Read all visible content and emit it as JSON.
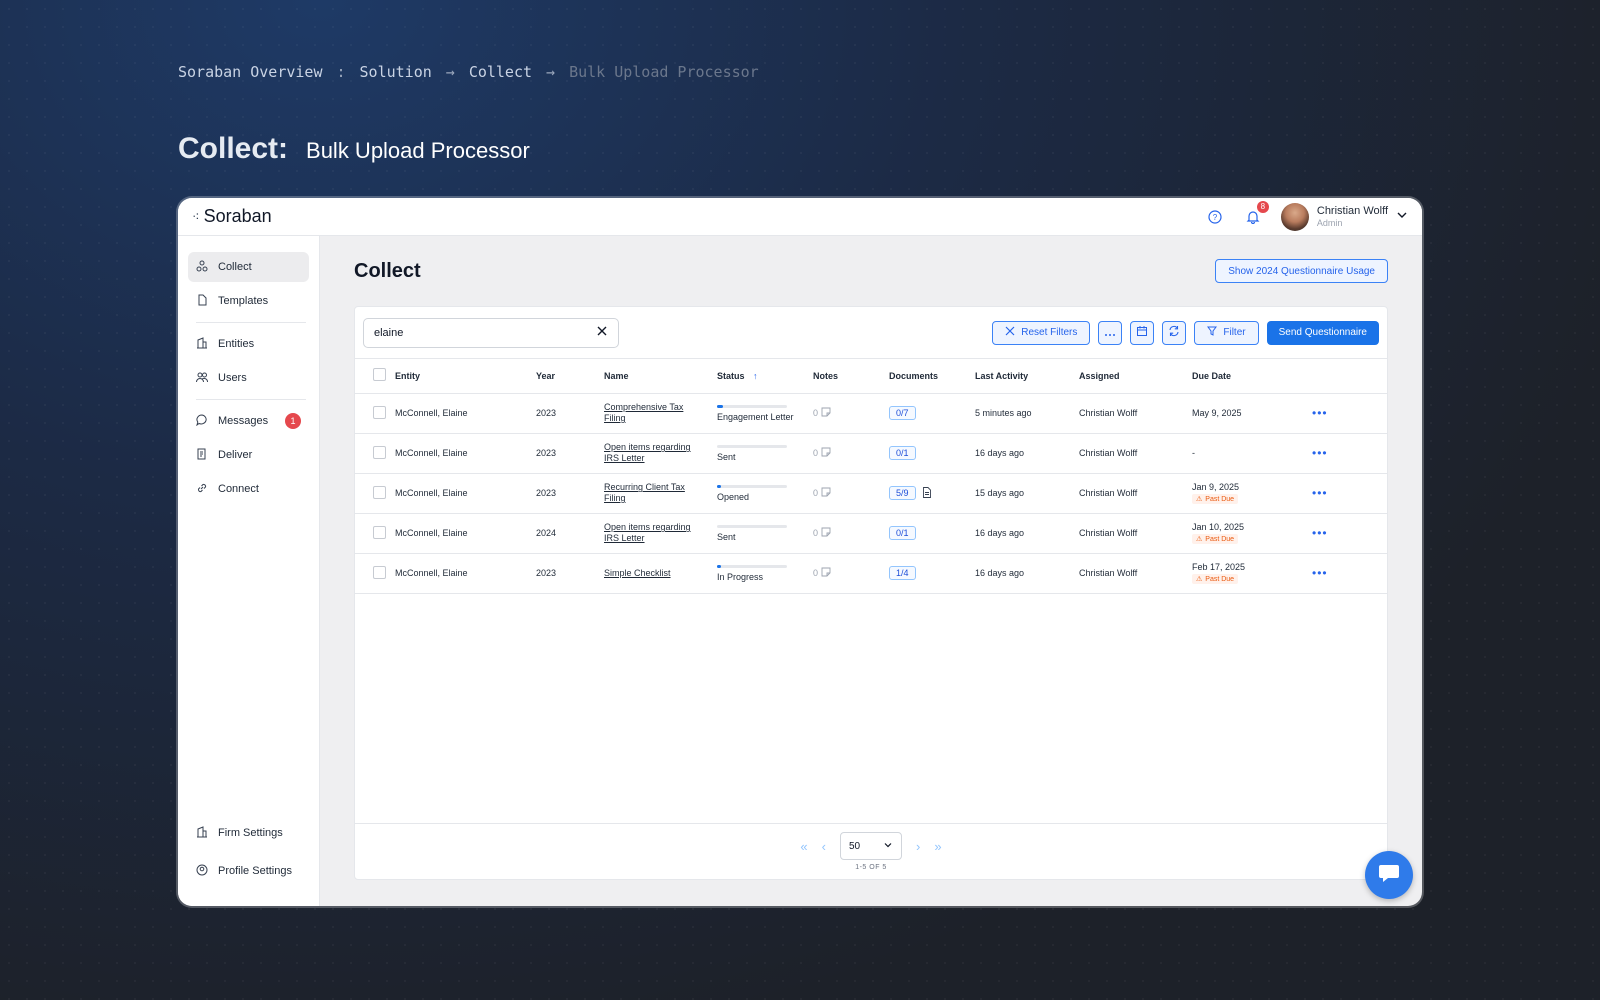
{
  "breadcrumb": {
    "items": [
      "Soraban Overview",
      "Solution",
      "Collect",
      "Bulk Upload Processor"
    ],
    "separators": [
      ":",
      "→",
      "→"
    ]
  },
  "headline": {
    "strong": "Collect:",
    "light": "Bulk Upload Processor"
  },
  "app": {
    "brand": "Soraban",
    "notifications_count": "8",
    "user": {
      "name": "Christian Wolff",
      "role": "Admin"
    }
  },
  "sidebar": {
    "items": [
      {
        "label": "Collect",
        "icon": "collect-icon",
        "active": true
      },
      {
        "label": "Templates",
        "icon": "file-icon"
      },
      {
        "label": "Entities",
        "icon": "building-icon"
      },
      {
        "label": "Users",
        "icon": "users-icon"
      },
      {
        "label": "Messages",
        "icon": "chat-bubble-icon",
        "badge": "1"
      },
      {
        "label": "Deliver",
        "icon": "deliver-icon"
      },
      {
        "label": "Connect",
        "icon": "link-icon"
      }
    ],
    "bottom": [
      {
        "label": "Firm Settings",
        "icon": "building-icon"
      },
      {
        "label": "Profile Settings",
        "icon": "profile-gear-icon"
      }
    ]
  },
  "main": {
    "title": "Collect",
    "usage_button": "Show 2024 Questionnaire Usage",
    "search_value": "elaine",
    "reset_filters": "Reset Filters",
    "filter": "Filter",
    "send_questionnaire": "Send Questionnaire"
  },
  "table": {
    "headers": [
      "Entity",
      "Year",
      "Name",
      "Status",
      "Notes",
      "Documents",
      "Last Activity",
      "Assigned",
      "Due Date"
    ],
    "rows": [
      {
        "entity": "McConnell, Elaine",
        "year": "2023",
        "name": "Comprehensive Tax Filing",
        "status": "Engagement Letter",
        "progress": 0.08,
        "notes": "0",
        "documents": "0/7",
        "doc_icon": false,
        "last_activity": "5 minutes ago",
        "assigned": "Christian Wolff",
        "due_date": "May 9, 2025",
        "past_due": ""
      },
      {
        "entity": "McConnell, Elaine",
        "year": "2023",
        "name": "Open items regarding IRS Letter",
        "status": "Sent",
        "progress": 0,
        "notes": "0",
        "documents": "0/1",
        "doc_icon": false,
        "last_activity": "16 days ago",
        "assigned": "Christian Wolff",
        "due_date": "-",
        "past_due": ""
      },
      {
        "entity": "McConnell, Elaine",
        "year": "2023",
        "name": "Recurring Client Tax Filing",
        "status": "Opened",
        "progress": 0.05,
        "notes": "0",
        "documents": "5/9",
        "doc_icon": true,
        "last_activity": "15 days ago",
        "assigned": "Christian Wolff",
        "due_date": "Jan 9, 2025",
        "past_due": "Past Due"
      },
      {
        "entity": "McConnell, Elaine",
        "year": "2024",
        "name": "Open items regarding IRS Letter",
        "status": "Sent",
        "progress": 0,
        "notes": "0",
        "documents": "0/1",
        "doc_icon": false,
        "last_activity": "16 days ago",
        "assigned": "Christian Wolff",
        "due_date": "Jan 10, 2025",
        "past_due": "Past Due"
      },
      {
        "entity": "McConnell, Elaine",
        "year": "2023",
        "name": "Simple Checklist",
        "status": "In Progress",
        "progress": 0.05,
        "notes": "0",
        "documents": "1/4",
        "doc_icon": false,
        "last_activity": "16 days ago",
        "assigned": "Christian Wolff",
        "due_date": "Feb 17, 2025",
        "past_due": "Past Due"
      }
    ]
  },
  "pagination": {
    "page_size": "50",
    "count": "1-5 OF 5"
  },
  "colors": {
    "accent": "#1a73e8",
    "danger": "#e5484d",
    "past_due": "#ea580c"
  }
}
